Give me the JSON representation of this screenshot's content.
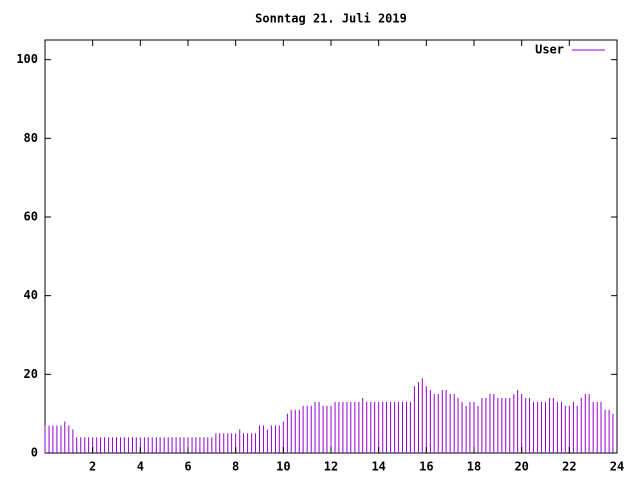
{
  "chart_data": {
    "type": "impulse",
    "title": "Sonntag 21. Juli 2019",
    "series": [
      {
        "name": "User",
        "color": "#9400d3",
        "x": [
          0,
          0.17,
          0.33,
          0.5,
          0.67,
          0.83,
          1,
          1.17,
          1.33,
          1.5,
          1.67,
          1.83,
          2,
          2.17,
          2.33,
          2.5,
          2.67,
          2.83,
          3,
          3.17,
          3.33,
          3.5,
          3.67,
          3.83,
          4,
          4.17,
          4.33,
          4.5,
          4.67,
          4.83,
          5,
          5.17,
          5.33,
          5.5,
          5.67,
          5.83,
          6,
          6.17,
          6.33,
          6.5,
          6.67,
          6.83,
          7,
          7.17,
          7.33,
          7.5,
          7.67,
          7.83,
          8,
          8.17,
          8.33,
          8.5,
          8.67,
          8.83,
          9,
          9.17,
          9.33,
          9.5,
          9.67,
          9.83,
          10,
          10.17,
          10.33,
          10.5,
          10.67,
          10.83,
          11,
          11.17,
          11.33,
          11.5,
          11.67,
          11.83,
          12,
          12.17,
          12.33,
          12.5,
          12.67,
          12.83,
          13,
          13.17,
          13.33,
          13.5,
          13.67,
          13.83,
          14,
          14.17,
          14.33,
          14.5,
          14.67,
          14.83,
          15,
          15.17,
          15.33,
          15.5,
          15.67,
          15.83,
          16,
          16.17,
          16.33,
          16.5,
          16.67,
          16.83,
          17,
          17.17,
          17.33,
          17.5,
          17.67,
          17.83,
          18,
          18.17,
          18.33,
          18.5,
          18.67,
          18.83,
          19,
          19.17,
          19.33,
          19.5,
          19.67,
          19.83,
          20,
          20.17,
          20.33,
          20.5,
          20.67,
          20.83,
          21,
          21.17,
          21.33,
          21.5,
          21.67,
          21.83,
          22,
          22.17,
          22.33,
          22.5,
          22.67,
          22.83,
          23,
          23.17,
          23.33,
          23.5,
          23.67,
          23.83
        ],
        "values": [
          7,
          7,
          7,
          7,
          7,
          8,
          7,
          6,
          4,
          4,
          4,
          4,
          4,
          4,
          4,
          4,
          4,
          4,
          4,
          4,
          4,
          4,
          4,
          4,
          4,
          4,
          4,
          4,
          4,
          4,
          4,
          4,
          4,
          4,
          4,
          4,
          4,
          4,
          4,
          4,
          4,
          4,
          4,
          5,
          5,
          5,
          5,
          5,
          5,
          6,
          5,
          5,
          5,
          5,
          7,
          7,
          6,
          7,
          7,
          7,
          8,
          10,
          11,
          11,
          11,
          12,
          12,
          12,
          13,
          13,
          12,
          12,
          12,
          13,
          13,
          13,
          13,
          13,
          13,
          13,
          14,
          13,
          13,
          13,
          13,
          13,
          13,
          13,
          13,
          13,
          13,
          13,
          13,
          17,
          18,
          19,
          17,
          16,
          15,
          15,
          16,
          16,
          15,
          15,
          14,
          13,
          12,
          13,
          13,
          12,
          14,
          14,
          15,
          15,
          14,
          14,
          14,
          14,
          15,
          16,
          15,
          14,
          14,
          13,
          13,
          13,
          13,
          14,
          14,
          13,
          13,
          12,
          12,
          13,
          12,
          14,
          15,
          15,
          13,
          13,
          13,
          11,
          11,
          10
        ]
      }
    ],
    "xlim": [
      0,
      24
    ],
    "xticks": [
      2,
      4,
      6,
      8,
      10,
      12,
      14,
      16,
      18,
      20,
      22,
      24
    ],
    "ylim": [
      0,
      105
    ],
    "yticks": [
      0,
      20,
      40,
      60,
      80,
      100
    ],
    "legend": "top-right"
  }
}
